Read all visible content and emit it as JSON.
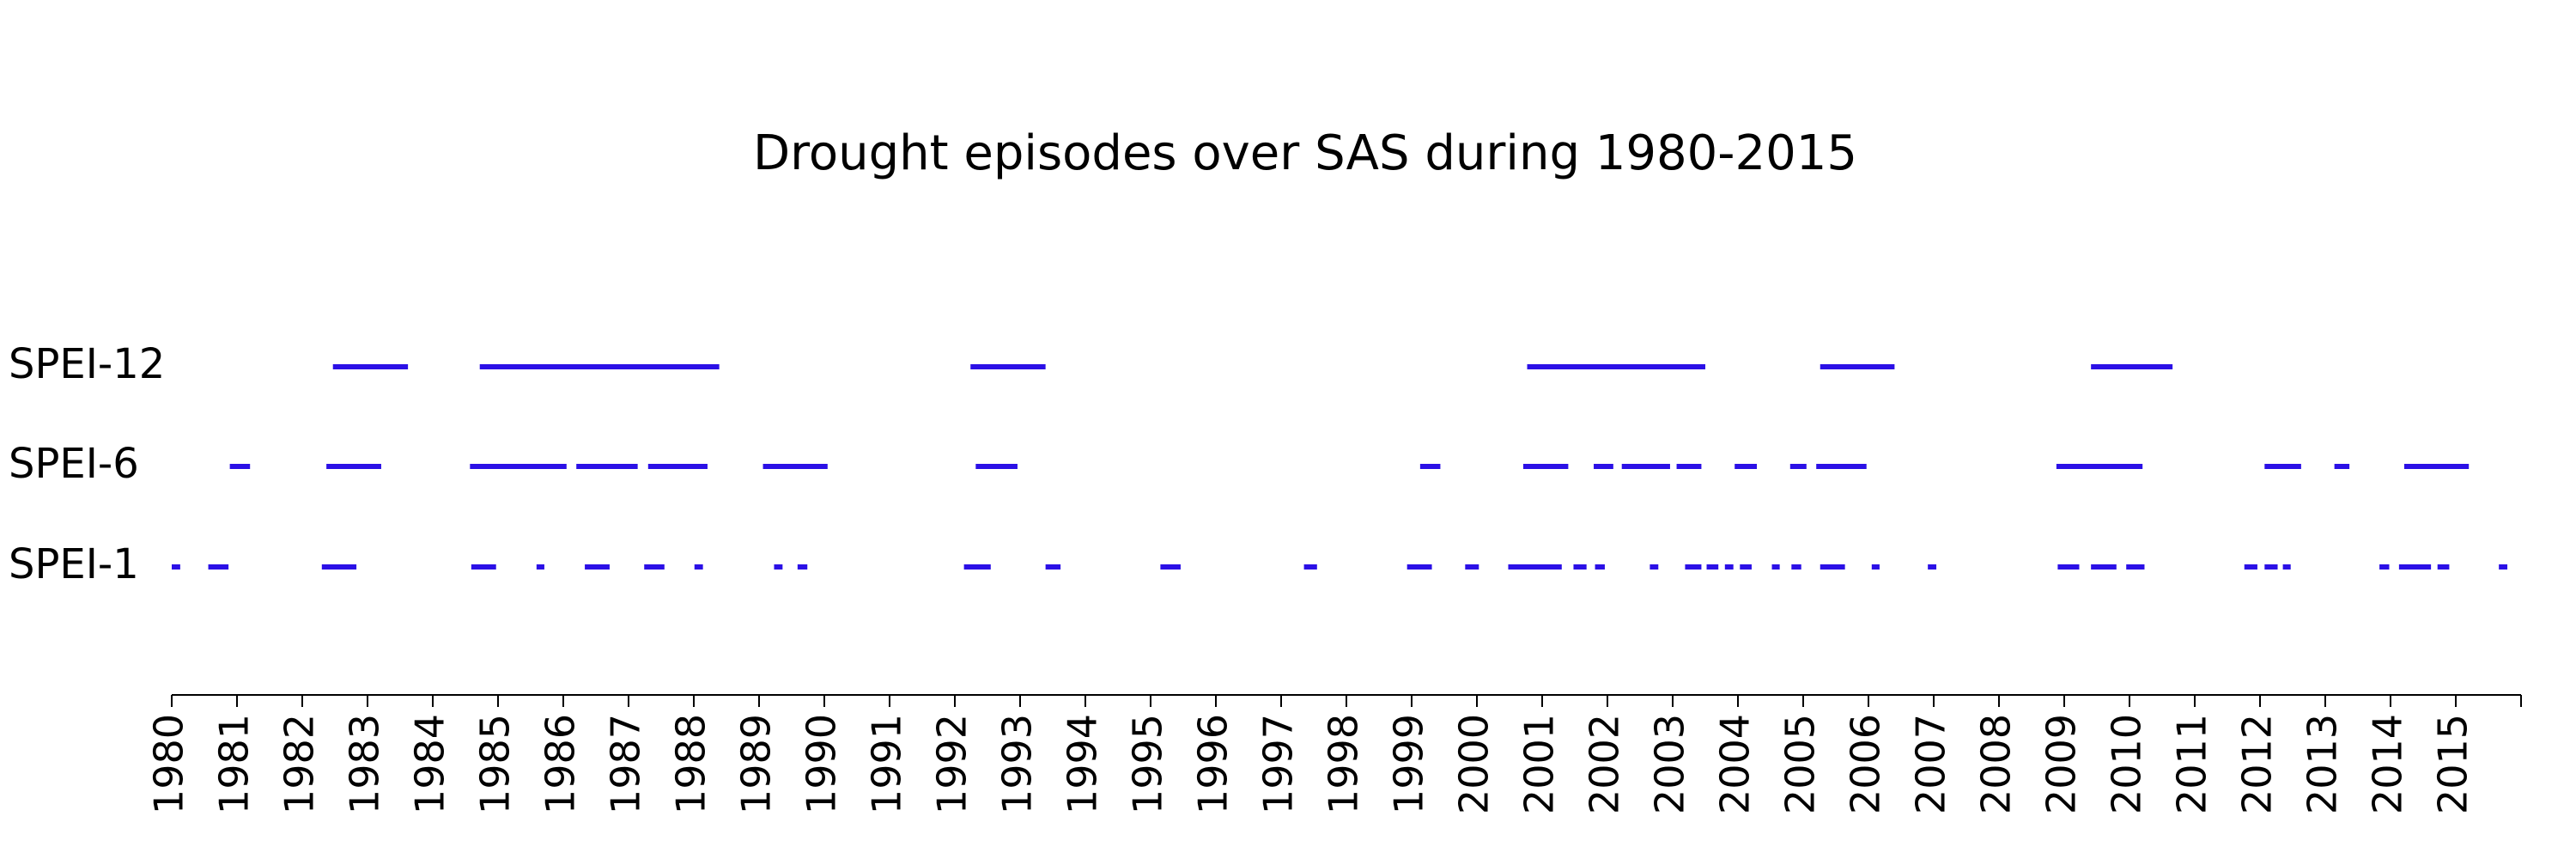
{
  "chart_data": {
    "type": "timeline",
    "title": "Drought episodes over SAS during 1980-2015",
    "xlim": [
      1980,
      2016
    ],
    "xticks": [
      1980,
      1981,
      1982,
      1983,
      1984,
      1985,
      1986,
      1987,
      1988,
      1989,
      1990,
      1991,
      1992,
      1993,
      1994,
      1995,
      1996,
      1997,
      1998,
      1999,
      2000,
      2001,
      2002,
      2003,
      2004,
      2005,
      2006,
      2007,
      2008,
      2009,
      2010,
      2011,
      2012,
      2013,
      2014,
      2015
    ],
    "series": [
      {
        "name": "SPEI-12",
        "color": "#2b10e6",
        "segments": [
          [
            1982.47,
            1983.62
          ],
          [
            1984.72,
            1988.39
          ],
          [
            1992.24,
            1993.39
          ],
          [
            2000.77,
            2003.5
          ],
          [
            2005.26,
            2006.4
          ],
          [
            2009.41,
            2010.66
          ]
        ]
      },
      {
        "name": "SPEI-6",
        "color": "#2b10e6",
        "segments": [
          [
            1980.89,
            1981.2
          ],
          [
            1982.37,
            1983.21
          ],
          [
            1984.57,
            1986.05
          ],
          [
            1986.2,
            1987.14
          ],
          [
            1987.3,
            1988.21
          ],
          [
            1989.06,
            1990.05
          ],
          [
            1992.32,
            1992.96
          ],
          [
            1999.13,
            1999.44
          ],
          [
            2000.71,
            2001.4
          ],
          [
            2001.79,
            2002.09
          ],
          [
            2002.22,
            2002.96
          ],
          [
            2003.06,
            2003.44
          ],
          [
            2003.95,
            2004.29
          ],
          [
            2004.8,
            2005.05
          ],
          [
            2005.2,
            2005.97
          ],
          [
            2008.88,
            2010.2
          ],
          [
            2012.07,
            2012.63
          ],
          [
            2013.14,
            2013.37
          ],
          [
            2014.21,
            2015.2
          ]
        ]
      },
      {
        "name": "SPEI-1",
        "color": "#2b10e6",
        "segments": [
          [
            1980.0,
            1980.13
          ],
          [
            1980.56,
            1980.87
          ],
          [
            1982.3,
            1982.83
          ],
          [
            1984.59,
            1984.97
          ],
          [
            1985.59,
            1985.71
          ],
          [
            1986.33,
            1986.71
          ],
          [
            1987.24,
            1987.55
          ],
          [
            1988.01,
            1988.14
          ],
          [
            1989.23,
            1989.36
          ],
          [
            1989.59,
            1989.74
          ],
          [
            1992.14,
            1992.55
          ],
          [
            1993.39,
            1993.62
          ],
          [
            1995.15,
            1995.46
          ],
          [
            1997.35,
            1997.55
          ],
          [
            1998.93,
            1999.31
          ],
          [
            1999.82,
            2000.03
          ],
          [
            2000.48,
            2001.3
          ],
          [
            2001.48,
            2001.68
          ],
          [
            2001.81,
            2001.96
          ],
          [
            2002.65,
            2002.78
          ],
          [
            2003.19,
            2003.44
          ],
          [
            2003.52,
            2003.7
          ],
          [
            2003.8,
            2003.93
          ],
          [
            2004.03,
            2004.21
          ],
          [
            2004.52,
            2004.64
          ],
          [
            2004.82,
            2004.97
          ],
          [
            2005.26,
            2005.64
          ],
          [
            2006.05,
            2006.17
          ],
          [
            2006.91,
            2007.04
          ],
          [
            2008.9,
            2009.23
          ],
          [
            2009.41,
            2009.8
          ],
          [
            2009.95,
            2010.23
          ],
          [
            2011.76,
            2011.96
          ],
          [
            2012.07,
            2012.27
          ],
          [
            2012.35,
            2012.47
          ],
          [
            2013.83,
            2013.98
          ],
          [
            2014.13,
            2014.62
          ],
          [
            2014.72,
            2014.9
          ],
          [
            2015.66,
            2015.79
          ]
        ]
      }
    ]
  }
}
